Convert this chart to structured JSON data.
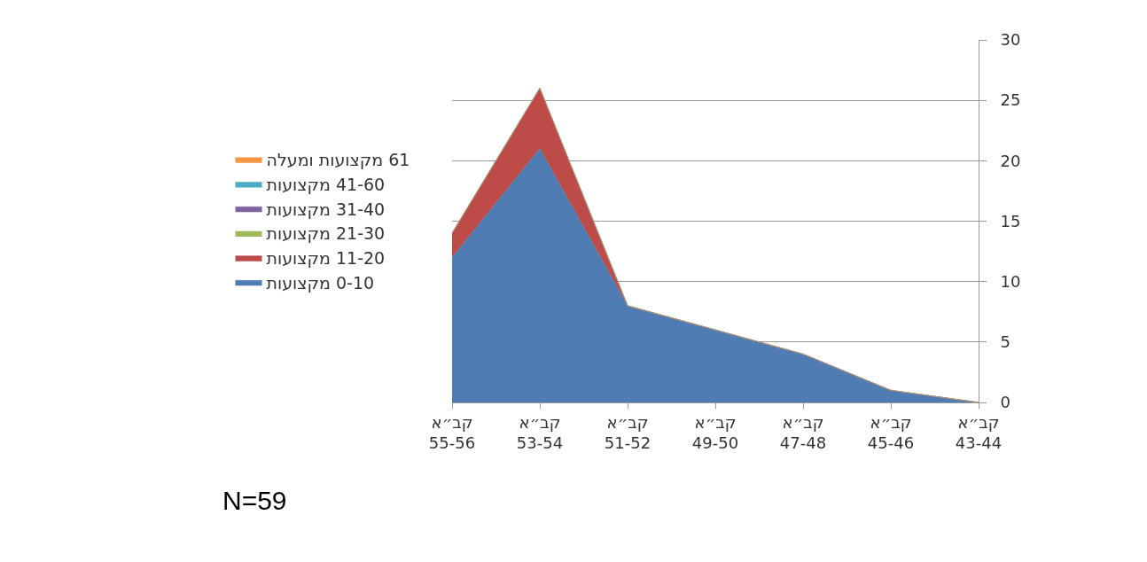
{
  "chart_data": {
    "type": "area",
    "stacked": true,
    "categories": [
      "קב״א\n55-56",
      "קב״א\n53-54",
      "קב״א\n51-52",
      "קב״א\n49-50",
      "קב״א\n47-48",
      "קב״א\n45-46",
      "קב״א\n43-44"
    ],
    "series": [
      {
        "name": "0-10 מקצועות",
        "color": "#4f7db3",
        "values": [
          12,
          21,
          8,
          6,
          4,
          1,
          0
        ]
      },
      {
        "name": "11-20 מקצועות",
        "color": "#bd4b48",
        "values": [
          2,
          5,
          0,
          0,
          0,
          0,
          0
        ]
      },
      {
        "name": "21-30 מקצועות",
        "color": "#9bbb59",
        "values": [
          null,
          null,
          null,
          null,
          null,
          null,
          null
        ]
      },
      {
        "name": "31-40 מקצועות",
        "color": "#7f62a1",
        "values": [
          null,
          null,
          null,
          null,
          null,
          null,
          null
        ]
      },
      {
        "name": "41-60 מקצועות",
        "color": "#4bacc6",
        "values": [
          null,
          null,
          null,
          null,
          null,
          null,
          null
        ]
      },
      {
        "name": "61 מקצועות ומעלה",
        "color": "#f79646",
        "values": [
          null,
          null,
          null,
          null,
          null,
          null,
          null
        ]
      }
    ],
    "ylim": [
      0,
      30
    ],
    "yticks": [
      0,
      5,
      10,
      15,
      20,
      25,
      30
    ],
    "grid": "y",
    "legend": "left",
    "annotations": [
      "N=59"
    ]
  }
}
